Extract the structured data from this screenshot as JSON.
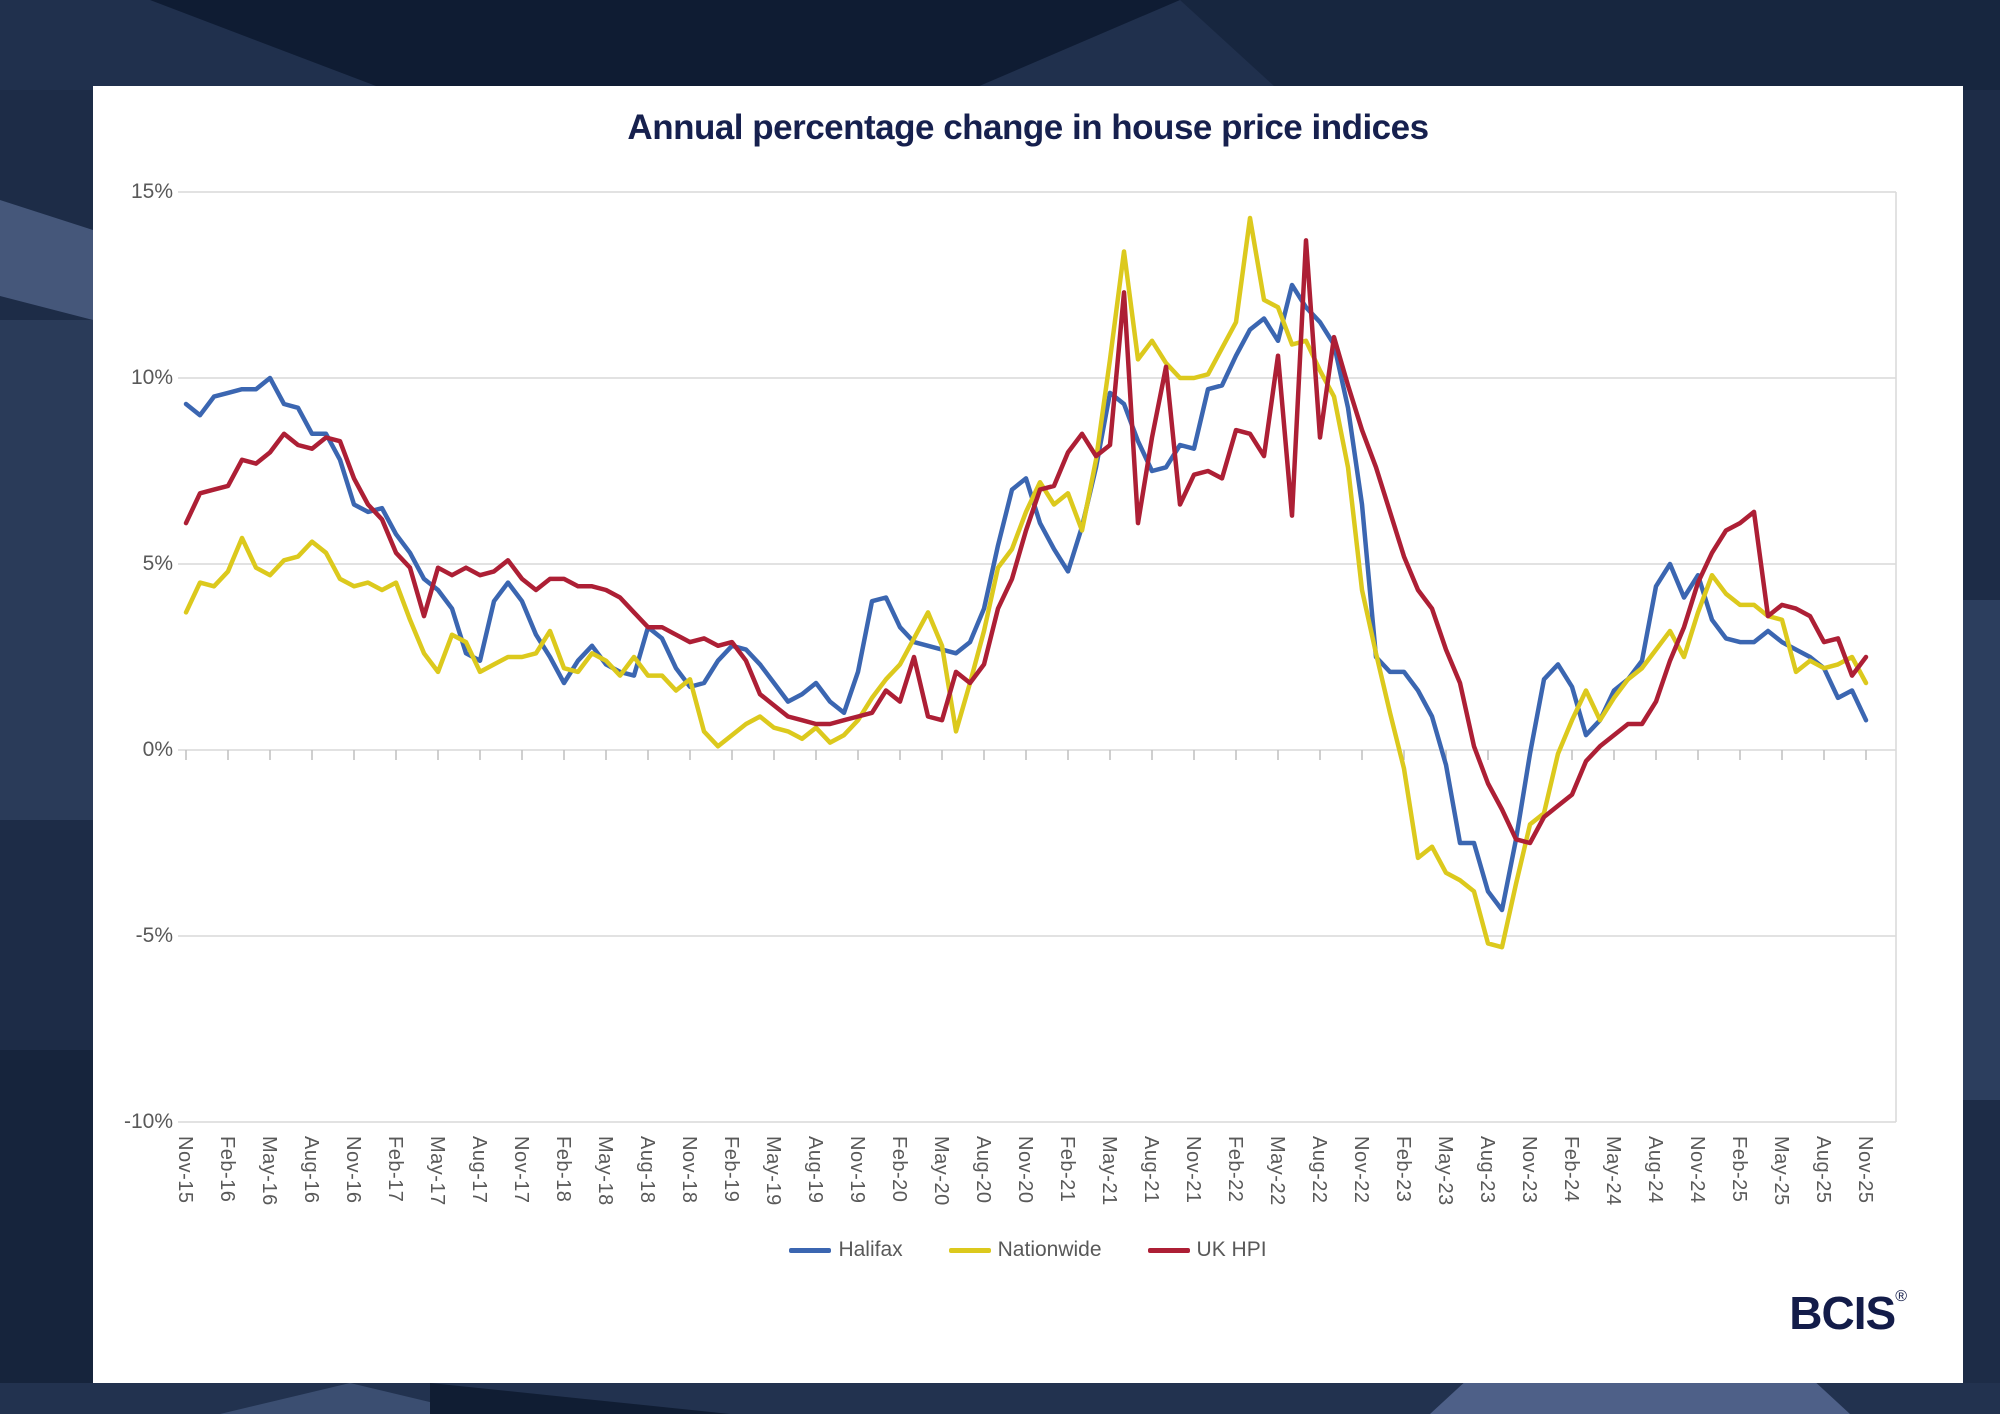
{
  "branding": {
    "logo_text": "BCIS",
    "reg_mark": "®"
  },
  "colors": {
    "halifax": "#3b66b1",
    "nationwide": "#dcc91d",
    "uk_hpi": "#ad1f35",
    "grid": "#d9d9d9",
    "tick": "#bfbfbf",
    "axis_text": "#595959",
    "title_text": "#16204e",
    "border_bg": "#1d2c47",
    "card_bg": "#ffffff"
  },
  "chart_data": {
    "type": "line",
    "title": "Annual percentage change in house price indices",
    "xlabel": "",
    "ylabel": "",
    "ylim": [
      -10,
      15
    ],
    "grid": "horizontal",
    "legend_position": "bottom",
    "x_unit": "month",
    "x_start": "Nov-15",
    "x_end": "Nov-25",
    "x_points": 121,
    "x_tick_every_months": 3,
    "x_tick_labels": [
      "Nov-15",
      "Feb-16",
      "May-16",
      "Aug-16",
      "Nov-16",
      "Feb-17",
      "May-17",
      "Aug-17",
      "Nov-17",
      "Feb-18",
      "May-18",
      "Aug-18",
      "Nov-18",
      "Feb-19",
      "May-19",
      "Aug-19",
      "Nov-19",
      "Feb-20",
      "May-20",
      "Aug-20",
      "Nov-20",
      "Feb-21",
      "May-21",
      "Aug-21",
      "Nov-21",
      "Feb-22",
      "May-22",
      "Aug-22",
      "Nov-22",
      "Feb-23",
      "May-23",
      "Aug-23",
      "Nov-23",
      "Feb-24",
      "May-24",
      "Aug-24",
      "Nov-24",
      "Feb-25",
      "May-25",
      "Aug-25",
      "Nov-25"
    ],
    "y_tick_labels": [
      "15%",
      "10%",
      "5%",
      "0%",
      "-5%",
      "-10%"
    ],
    "y_tick_values": [
      15,
      10,
      5,
      0,
      -5,
      -10
    ],
    "series": [
      {
        "name": "Halifax",
        "color": "#3b66b1",
        "values": [
          9.3,
          9.0,
          9.5,
          9.6,
          9.7,
          9.7,
          10.0,
          9.3,
          9.2,
          8.5,
          8.5,
          7.8,
          6.6,
          6.4,
          6.5,
          5.8,
          5.3,
          4.6,
          4.3,
          3.8,
          2.6,
          2.4,
          4.0,
          4.5,
          4.0,
          3.1,
          2.5,
          1.8,
          2.4,
          2.8,
          2.3,
          2.1,
          2.0,
          3.3,
          3.0,
          2.2,
          1.7,
          1.8,
          2.4,
          2.8,
          2.7,
          2.3,
          1.8,
          1.3,
          1.5,
          1.8,
          1.3,
          1.0,
          2.1,
          4.0,
          4.1,
          3.3,
          2.9,
          2.8,
          2.7,
          2.6,
          2.9,
          3.8,
          5.5,
          7.0,
          7.3,
          6.1,
          5.4,
          4.8,
          6.0,
          7.6,
          9.6,
          9.3,
          8.3,
          7.5,
          7.6,
          8.2,
          8.1,
          9.7,
          9.8,
          10.6,
          11.3,
          11.6,
          11.0,
          12.5,
          11.9,
          11.5,
          10.9,
          9.2,
          6.6,
          2.5,
          2.1,
          2.1,
          1.6,
          0.9,
          -0.4,
          -2.5,
          -2.5,
          -3.8,
          -4.3,
          -2.4,
          -0.1,
          1.9,
          2.3,
          1.7,
          0.4,
          0.8,
          1.6,
          1.9,
          2.4,
          4.4,
          5.0,
          4.1,
          4.7,
          3.5,
          3.0,
          2.9,
          2.9,
          3.2,
          2.9,
          2.7,
          2.5,
          2.2,
          1.4,
          1.6,
          0.8
        ]
      },
      {
        "name": "Nationwide",
        "color": "#dcc91d",
        "values": [
          3.7,
          4.5,
          4.4,
          4.8,
          5.7,
          4.9,
          4.7,
          5.1,
          5.2,
          5.6,
          5.3,
          4.6,
          4.4,
          4.5,
          4.3,
          4.5,
          3.5,
          2.6,
          2.1,
          3.1,
          2.9,
          2.1,
          2.3,
          2.5,
          2.5,
          2.6,
          3.2,
          2.2,
          2.1,
          2.6,
          2.4,
          2.0,
          2.5,
          2.0,
          2.0,
          1.6,
          1.9,
          0.5,
          0.1,
          0.4,
          0.7,
          0.9,
          0.6,
          0.5,
          0.3,
          0.6,
          0.2,
          0.4,
          0.8,
          1.4,
          1.9,
          2.3,
          3.0,
          3.7,
          2.8,
          0.5,
          1.8,
          3.2,
          4.9,
          5.4,
          6.4,
          7.2,
          6.6,
          6.9,
          5.9,
          7.8,
          10.5,
          13.4,
          10.5,
          11.0,
          10.4,
          10.0,
          10.0,
          10.1,
          10.8,
          11.5,
          14.3,
          12.1,
          11.9,
          10.9,
          11.0,
          10.2,
          9.5,
          7.6,
          4.3,
          2.6,
          1.0,
          -0.5,
          -2.9,
          -2.6,
          -3.3,
          -3.5,
          -3.8,
          -5.2,
          -5.3,
          -3.6,
          -2.0,
          -1.7,
          -0.1,
          0.8,
          1.6,
          0.8,
          1.4,
          1.9,
          2.2,
          2.7,
          3.2,
          2.5,
          3.7,
          4.7,
          4.2,
          3.9,
          3.9,
          3.6,
          3.5,
          2.1,
          2.4,
          2.2,
          2.3,
          2.5,
          1.8
        ]
      },
      {
        "name": "UK HPI",
        "color": "#ad1f35",
        "values": [
          6.1,
          6.9,
          7.0,
          7.1,
          7.8,
          7.7,
          8.0,
          8.5,
          8.2,
          8.1,
          8.4,
          8.3,
          7.3,
          6.6,
          6.2,
          5.3,
          4.9,
          3.6,
          4.9,
          4.7,
          4.9,
          4.7,
          4.8,
          5.1,
          4.6,
          4.3,
          4.6,
          4.6,
          4.4,
          4.4,
          4.3,
          4.1,
          3.7,
          3.3,
          3.3,
          3.1,
          2.9,
          3.0,
          2.8,
          2.9,
          2.4,
          1.5,
          1.2,
          0.9,
          0.8,
          0.7,
          0.7,
          0.8,
          0.9,
          1.0,
          1.6,
          1.3,
          2.5,
          0.9,
          0.8,
          2.1,
          1.8,
          2.3,
          3.8,
          4.6,
          5.9,
          7.0,
          7.1,
          8.0,
          8.5,
          7.9,
          8.2,
          12.3,
          6.1,
          8.4,
          10.3,
          6.6,
          7.4,
          7.5,
          7.3,
          8.6,
          8.5,
          7.9,
          10.6,
          6.3,
          13.7,
          8.4,
          11.1,
          9.8,
          8.6,
          7.6,
          6.4,
          5.2,
          4.3,
          3.8,
          2.7,
          1.8,
          0.1,
          -0.9,
          -1.6,
          -2.4,
          -2.5,
          -1.8,
          -1.5,
          -1.2,
          -0.3,
          0.1,
          0.4,
          0.7,
          0.7,
          1.3,
          2.4,
          3.3,
          4.5,
          5.3,
          5.9,
          6.1,
          6.4,
          3.6,
          3.9,
          3.8,
          3.6,
          2.9,
          3.0,
          2.0,
          2.5
        ]
      }
    ]
  }
}
